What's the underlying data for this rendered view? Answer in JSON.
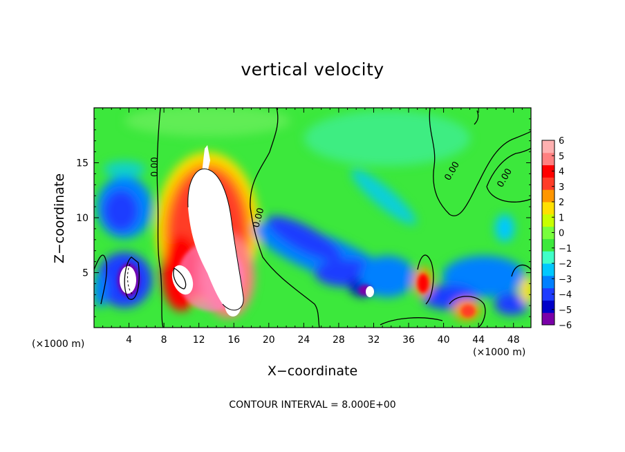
{
  "chart_data": {
    "type": "heatmap",
    "title": "vertical velocity",
    "xlabel": "X−coordinate",
    "ylabel": "Z−coordinate",
    "x_unit_label": "(×1000 m)",
    "x_ticks": [
      4,
      8,
      12,
      16,
      20,
      24,
      28,
      32,
      36,
      40,
      44,
      48
    ],
    "y_ticks": [
      5,
      10,
      15
    ],
    "xlim": [
      0,
      50
    ],
    "ylim": [
      0,
      20
    ],
    "contour_label": "0.00",
    "contour_interval_text": "CONTOUR INTERVAL = 8.000E+00",
    "colorbar": {
      "ticks": [
        "6",
        "5",
        "4",
        "3",
        "2",
        "1",
        "0",
        "−1",
        "−2",
        "−3",
        "−4",
        "−5",
        "−6"
      ],
      "range": [
        -6,
        6
      ],
      "colors": [
        "#7a00a8",
        "#0000c8",
        "#1e3cff",
        "#0080ff",
        "#00c8ff",
        "#40ffc8",
        "#3ce83c",
        "#78ff3c",
        "#c8ff00",
        "#ffe000",
        "#ff9600",
        "#ff3c28",
        "#ff0000",
        "#ff8080",
        "#ffb0b0"
      ],
      "above_max_color": "#ffffff"
    },
    "features": [
      {
        "kind": "updraft",
        "x": 13.5,
        "z": 8,
        "value": 8
      },
      {
        "kind": "updraft",
        "x": 9.5,
        "z": 4,
        "value": 6
      },
      {
        "kind": "updraft",
        "x": 38,
        "z": 4,
        "value": 4
      },
      {
        "kind": "updraft",
        "x": 43,
        "z": 1.5,
        "value": 4
      },
      {
        "kind": "updraft",
        "x": 4.5,
        "z": 4,
        "value": 8
      },
      {
        "kind": "downdraft",
        "x": 27,
        "z": 6,
        "value": -5
      },
      {
        "kind": "downdraft",
        "x": 31,
        "z": 4,
        "value": -6
      },
      {
        "kind": "downdraft",
        "x": 3,
        "z": 10,
        "value": -5
      },
      {
        "kind": "downdraft",
        "x": 29,
        "z": 12,
        "value": -3
      }
    ]
  }
}
